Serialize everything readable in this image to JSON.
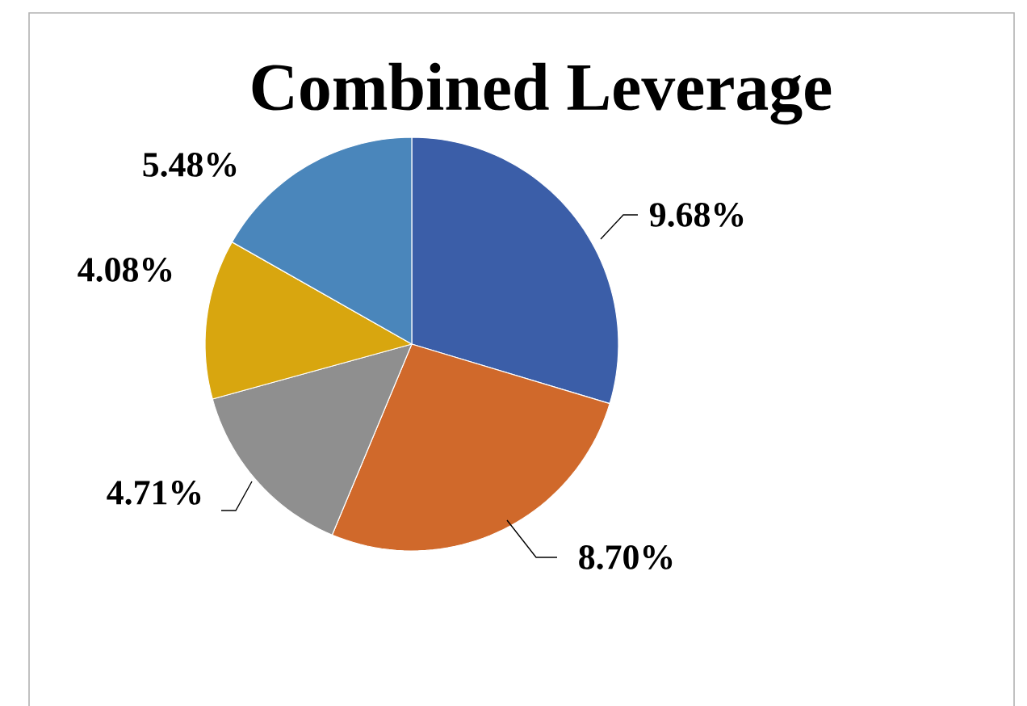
{
  "chart_data": {
    "type": "pie",
    "title": "Combined Leverage",
    "categories": [
      null,
      null,
      null,
      null,
      null
    ],
    "values": [
      9.68,
      8.7,
      4.71,
      4.08,
      5.48
    ],
    "value_labels": [
      "9.68%",
      "8.70%",
      "4.71%",
      "4.08%",
      "5.48%"
    ],
    "colors": [
      "#3b5ea8",
      "#d0692b",
      "#8f8f8f",
      "#d8a60f",
      "#4a86bb"
    ]
  }
}
